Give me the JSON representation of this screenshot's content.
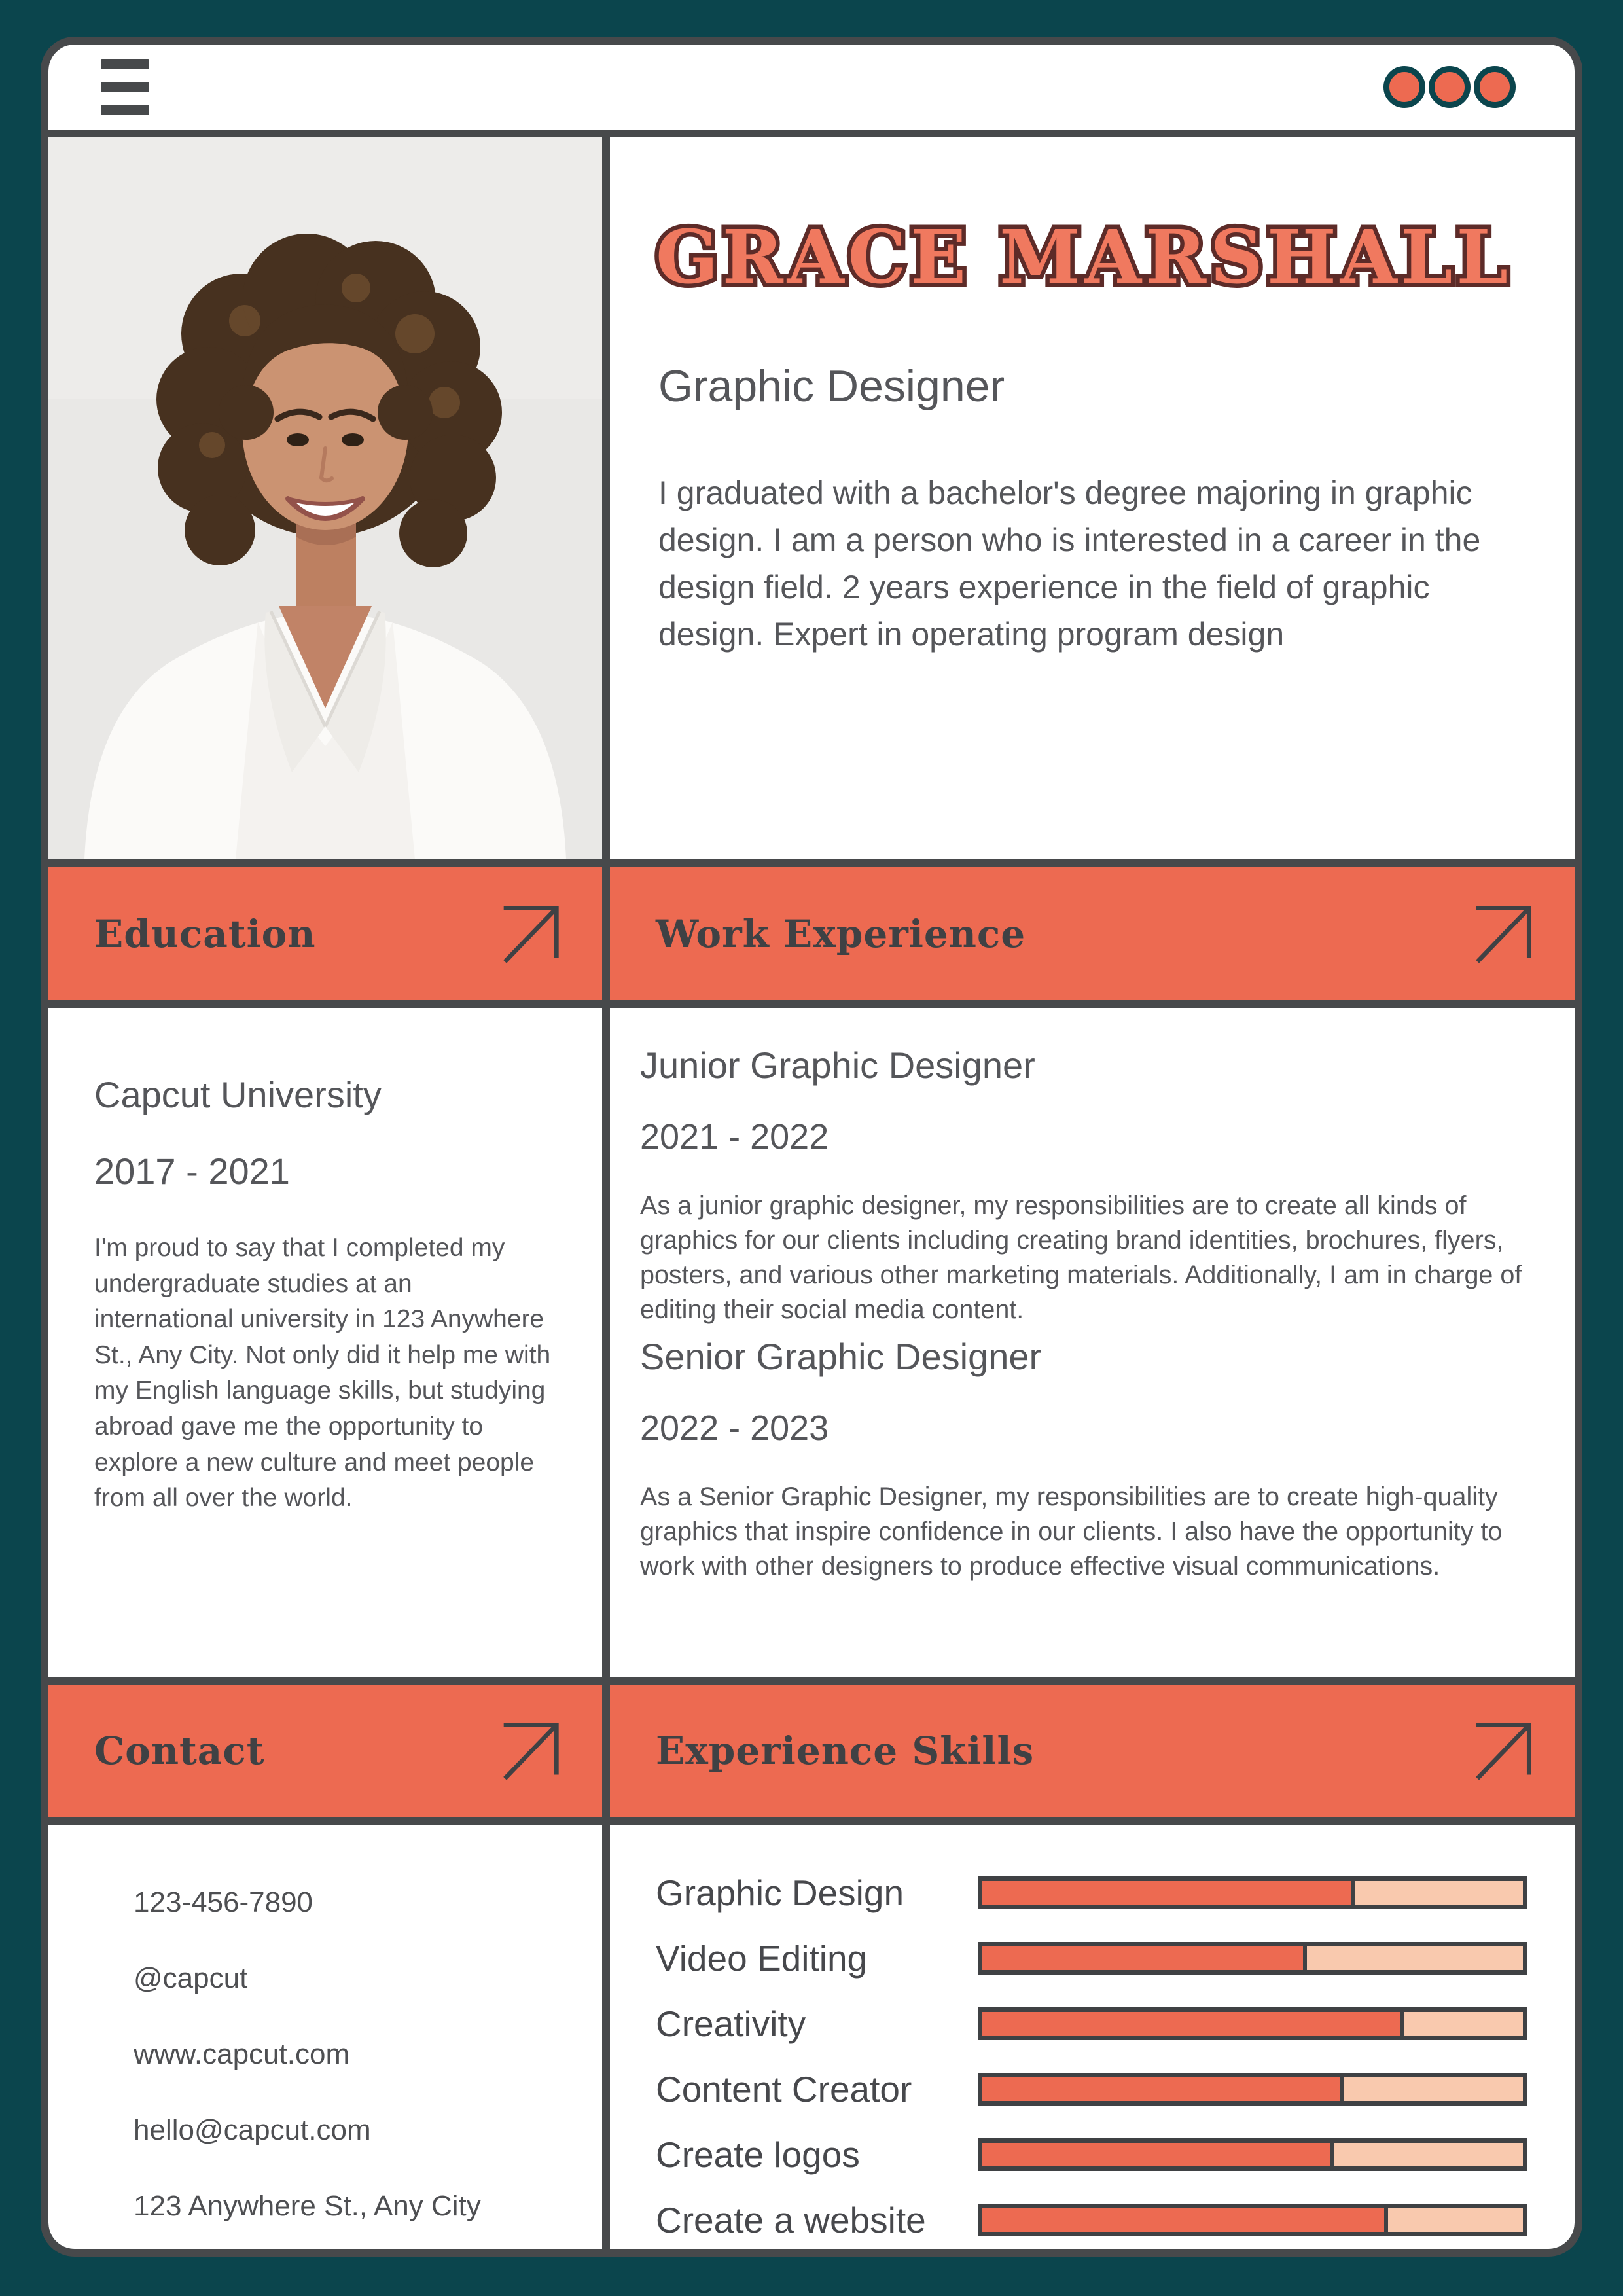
{
  "colors": {
    "background_teal": "#0b454d",
    "accent_coral": "#ed6a51",
    "bar_remainder_peach": "#f9c9ae",
    "frame_gray": "#47494b",
    "text_gray": "#55565a",
    "name_fill": "#f0795f",
    "name_outline": "#5d2b28"
  },
  "topbar": {
    "menu_icon": "hamburger",
    "dot_count": "3"
  },
  "profile": {
    "name": "GRACE MARSHALL",
    "title": "Graphic Designer",
    "bio": "I graduated with a bachelor's degree majoring in graphic design. I am a person who is interested in a career in the design field. 2 years experience in the field of graphic design. Expert in operating program design"
  },
  "sections": {
    "education": {
      "header": "Education",
      "school": "Capcut University",
      "years": "2017 - 2021",
      "description": "I'm proud to say that I completed my undergraduate studies at an international university in 123 Anywhere St., Any City. Not only did it help me  with my English language skills, but studying abroad gave me the opportunity to explore a  new culture and meet people from all over the world."
    },
    "work": {
      "header": "Work Experience",
      "jobs": [
        {
          "title": "Junior Graphic Designer",
          "years": "2021 - 2022",
          "description": "As a junior graphic designer, my responsibilities are to create all kinds of graphics for our clients including creating brand identities, brochures, flyers, posters, and various other marketing materials. Additionally, I am in charge of editing their social media content."
        },
        {
          "title": "Senior Graphic Designer",
          "years": "2022 - 2023",
          "description": "As a Senior Graphic Designer, my responsibilities are to create high-quality graphics that inspire confidence in our clients. I also have the opportunity to work with other designers to produce effective visual communications."
        }
      ]
    },
    "contact": {
      "header": "Contact",
      "items": [
        "123-456-7890",
        "@capcut",
        "www.capcut.com",
        "hello@capcut.com",
        "123 Anywhere St., Any City"
      ]
    },
    "skills": {
      "header": "Experience Skills",
      "chart_data": {
        "type": "bar",
        "categories": [
          "Graphic Design",
          "Video Editing",
          "Creativity",
          "Content Creator",
          "Create logos",
          "Create a website"
        ],
        "values": [
          69,
          60,
          78,
          67,
          65,
          75
        ],
        "unit": "percent",
        "xlim": [
          0,
          100
        ]
      }
    }
  }
}
